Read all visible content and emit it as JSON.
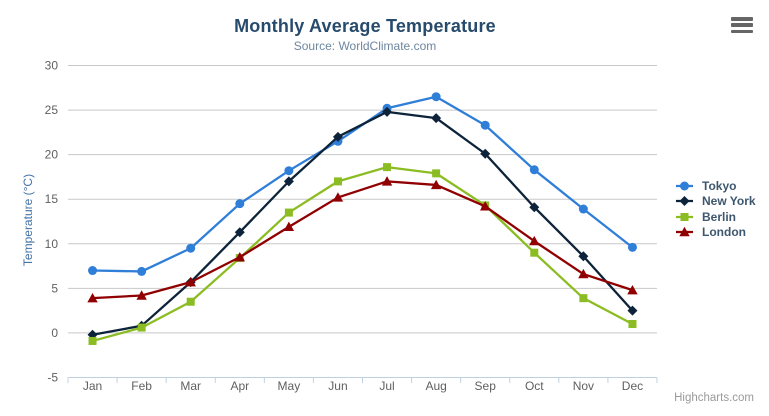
{
  "header": {
    "title": "Monthly Average Temperature",
    "subtitle": "Source: WorldClimate.com"
  },
  "credit": {
    "label": "Highcharts.com"
  },
  "colors": {
    "title_text": "#274b6d",
    "subtitle_text": "#6d869f",
    "axis_title_text": "#4572a7",
    "tick_label_text": "#606060",
    "legend_text": "#3e576f",
    "gridline": "#c8c8c8",
    "axis_line": "#c0d0e0",
    "menu_icon": "#666666",
    "tokyo": "#2f7ed8",
    "new_york": "#0d233a",
    "berlin": "#8bbc21",
    "london": "#910000"
  },
  "chart_data": {
    "type": "line",
    "title": "Monthly Average Temperature",
    "subtitle": "Source: WorldClimate.com",
    "xlabel": "",
    "ylabel": "Temperature (°C)",
    "categories": [
      "Jan",
      "Feb",
      "Mar",
      "Apr",
      "May",
      "Jun",
      "Jul",
      "Aug",
      "Sep",
      "Oct",
      "Nov",
      "Dec"
    ],
    "ylim": [
      -5,
      30
    ],
    "yticks": [
      "30",
      "25",
      "20",
      "15",
      "10",
      "5",
      "0",
      "-5"
    ],
    "ytick_values": [
      30,
      25,
      20,
      15,
      10,
      5,
      0,
      -5
    ],
    "grid": true,
    "legend_position": "right",
    "series": [
      {
        "name": "Tokyo",
        "color": "#2f7ed8",
        "marker": "circle",
        "values": [
          7.0,
          6.9,
          9.5,
          14.5,
          18.2,
          21.5,
          25.2,
          26.5,
          23.3,
          18.3,
          13.9,
          9.6
        ]
      },
      {
        "name": "New York",
        "color": "#0d233a",
        "marker": "diamond",
        "values": [
          -0.2,
          0.8,
          5.7,
          11.3,
          17.0,
          22.0,
          24.8,
          24.1,
          20.1,
          14.1,
          8.6,
          2.5
        ]
      },
      {
        "name": "Berlin",
        "color": "#8bbc21",
        "marker": "square",
        "values": [
          -0.9,
          0.6,
          3.5,
          8.4,
          13.5,
          17.0,
          18.6,
          17.9,
          14.3,
          9.0,
          3.9,
          1.0
        ]
      },
      {
        "name": "London",
        "color": "#910000",
        "marker": "triangle",
        "values": [
          3.9,
          4.2,
          5.7,
          8.5,
          11.9,
          15.2,
          17.0,
          16.6,
          14.2,
          10.3,
          6.6,
          4.8
        ]
      }
    ]
  }
}
